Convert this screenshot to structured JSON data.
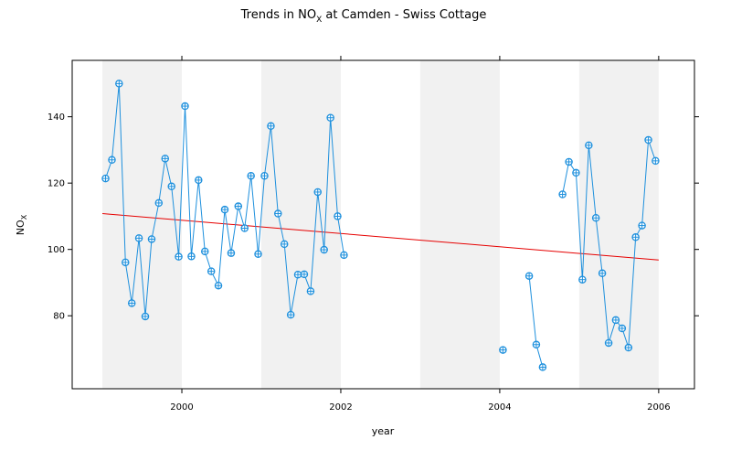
{
  "chart_data": {
    "type": "line",
    "title": {
      "prefix": "Trends in NO",
      "sub": "X",
      "suffix": " at Camden - Swiss Cottage"
    },
    "xlabel": "year",
    "ylabel": {
      "main": "NO",
      "sub": "X"
    },
    "xlim": [
      1998.62,
      2006.45
    ],
    "ylim": [
      58,
      157
    ],
    "x_ticks": [
      2000,
      2002,
      2004,
      2006
    ],
    "y_ticks": [
      80,
      100,
      120,
      140
    ],
    "shaded_year_bands": [
      [
        1999,
        2000
      ],
      [
        2001,
        2002
      ],
      [
        2003,
        2004
      ],
      [
        2005,
        2006
      ]
    ],
    "colors": {
      "series": "#1e90dd",
      "trend": "#e60000",
      "band": "#f1f1f1",
      "frame": "#000000"
    },
    "series": [
      {
        "marker": "open-circle-plus",
        "x": [
          1999.04,
          1999.12,
          1999.21,
          1999.29,
          1999.37,
          1999.46,
          1999.54,
          1999.62,
          1999.71,
          1999.79,
          1999.87,
          1999.96,
          2000.04,
          2000.12,
          2000.21,
          2000.29,
          2000.37,
          2000.46,
          2000.54,
          2000.62,
          2000.71,
          2000.79,
          2000.87,
          2000.96,
          2001.04,
          2001.12,
          2001.21,
          2001.29,
          2001.37,
          2001.46,
          2001.54,
          2001.62,
          2001.71,
          2001.79,
          2001.87,
          2001.96,
          2002.04,
          2004.04,
          2004.37,
          2004.46,
          2004.54,
          2004.79,
          2004.87,
          2004.96,
          2005.04,
          2005.12,
          2005.21,
          2005.29,
          2005.37,
          2005.46,
          2005.54,
          2005.62,
          2005.71,
          2005.79,
          2005.87,
          2005.96
        ],
        "y": [
          121.4,
          127,
          150,
          96.1,
          83.8,
          103.4,
          79.8,
          103.1,
          114,
          127.4,
          119,
          97.8,
          143.2,
          97.9,
          120.9,
          99.4,
          93.4,
          89.1,
          112,
          98.9,
          113,
          106.4,
          122.2,
          98.6,
          122.2,
          137.2,
          110.8,
          101.6,
          80.3,
          92.4,
          92.5,
          87.4,
          117.3,
          99.9,
          139.7,
          110,
          98.3,
          69.7,
          92,
          71.3,
          64.5,
          116.6,
          126.4,
          123.1,
          90.9,
          131.4,
          109.5,
          92.8,
          71.8,
          78.7,
          76.2,
          70.4,
          103.7,
          107.2,
          133,
          126.7
        ],
        "segments": [
          [
            0,
            36
          ],
          [
            37,
            37
          ],
          [
            38,
            40
          ],
          [
            41,
            55
          ]
        ]
      }
    ],
    "trend_line": {
      "x": [
        1999.0,
        2006.0
      ],
      "y": [
        110.8,
        96.8
      ]
    }
  }
}
